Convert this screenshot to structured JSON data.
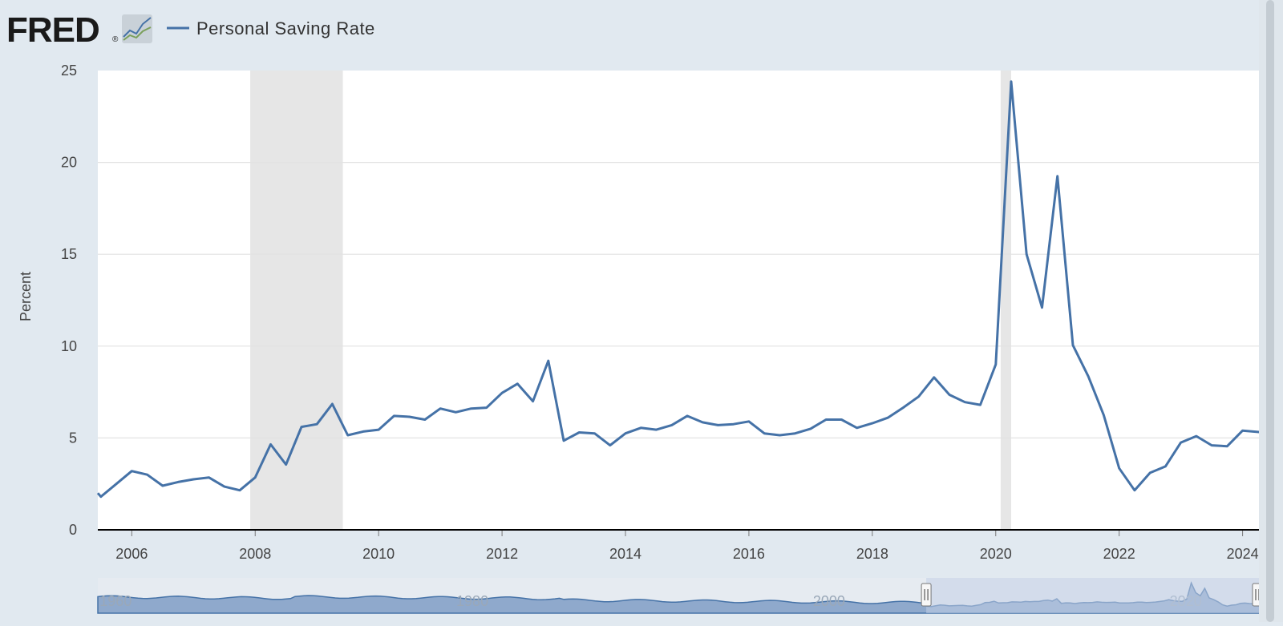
{
  "header": {
    "logo_text": "FRED",
    "logo_reg": "®",
    "legend_label": "Personal Saving Rate"
  },
  "colors": {
    "line": "#4572a7",
    "recession": "#e6e6e6",
    "nav_fill": "#8fa9cc",
    "nav_selected": "#c2d0e6",
    "background": "#e1e9f0"
  },
  "chart_data": {
    "type": "line",
    "title": "",
    "ylabel": "Percent",
    "xlabel": "",
    "xlim": [
      2005.45,
      2024.33
    ],
    "ylim": [
      0,
      25
    ],
    "yticks": [
      0,
      5,
      10,
      15,
      20,
      25
    ],
    "xticks": [
      2006,
      2008,
      2010,
      2012,
      2014,
      2016,
      2018,
      2020,
      2022,
      2024
    ],
    "grid": true,
    "legend": "top-left",
    "recessions": [
      [
        2007.92,
        2009.42
      ],
      [
        2020.08,
        2020.25
      ]
    ],
    "series": [
      {
        "name": "Personal Saving Rate",
        "x": [
          2005.45,
          2005.5,
          2005.75,
          2006,
          2006.25,
          2006.5,
          2006.75,
          2007,
          2007.25,
          2007.5,
          2007.75,
          2008,
          2008.25,
          2008.5,
          2008.75,
          2009,
          2009.25,
          2009.5,
          2009.75,
          2010,
          2010.25,
          2010.5,
          2010.75,
          2011,
          2011.25,
          2011.5,
          2011.75,
          2012,
          2012.25,
          2012.5,
          2012.75,
          2013,
          2013.25,
          2013.5,
          2013.75,
          2014,
          2014.25,
          2014.5,
          2014.75,
          2015,
          2015.25,
          2015.5,
          2015.75,
          2016,
          2016.25,
          2016.5,
          2016.75,
          2017,
          2017.25,
          2017.5,
          2017.75,
          2018,
          2018.25,
          2018.5,
          2018.75,
          2019,
          2019.25,
          2019.5,
          2019.75,
          2020,
          2020.25,
          2020.5,
          2020.75,
          2021,
          2021.25,
          2021.5,
          2021.75,
          2022,
          2022.25,
          2022.5,
          2022.75,
          2023,
          2023.25,
          2023.5,
          2023.75,
          2024,
          2024.33
        ],
        "y": [
          2.0,
          1.8,
          2.5,
          3.2,
          3.0,
          2.4,
          2.6,
          2.75,
          2.85,
          2.35,
          2.15,
          2.85,
          4.65,
          3.55,
          5.6,
          5.75,
          6.85,
          5.15,
          5.35,
          5.45,
          6.2,
          6.15,
          6.0,
          6.6,
          6.4,
          6.6,
          6.65,
          7.45,
          7.95,
          7.0,
          9.2,
          4.85,
          5.3,
          5.25,
          4.6,
          5.25,
          5.55,
          5.45,
          5.7,
          6.2,
          5.85,
          5.7,
          5.75,
          5.9,
          5.25,
          5.15,
          5.25,
          5.5,
          6.0,
          6.0,
          5.55,
          5.8,
          6.1,
          6.65,
          7.25,
          8.3,
          7.35,
          6.95,
          6.8,
          9.0,
          24.4,
          15.0,
          12.1,
          19.25,
          10.05,
          8.35,
          6.25,
          3.35,
          2.15,
          3.1,
          3.45,
          4.75,
          5.1,
          4.6,
          4.55,
          5.4,
          5.3
        ]
      }
    ],
    "navigator": {
      "xticks": [
        1960,
        1980,
        2000,
        2020
      ],
      "selected_range": [
        2005.45,
        2024.33
      ]
    }
  }
}
